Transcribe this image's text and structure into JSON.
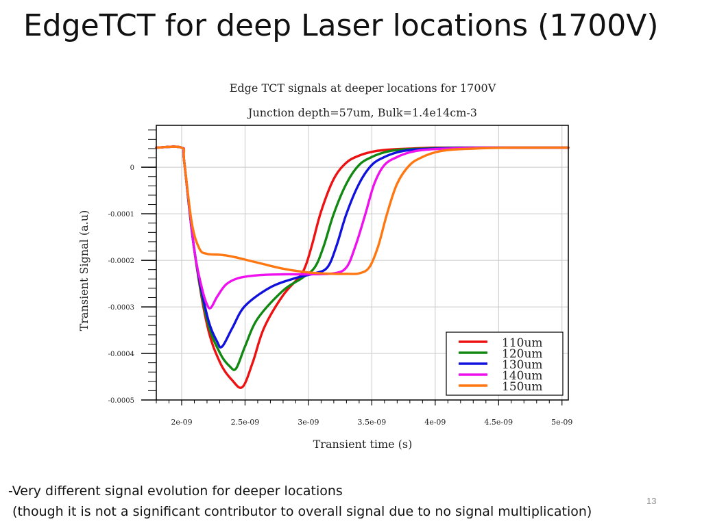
{
  "slide": {
    "title": "EdgeTCT for deep Laser locations (1700V)",
    "caption_line1": "-Very different signal evolution for deeper locations",
    "caption_line2": " (though it is not a significant contributor to overall signal due to no signal multiplication)",
    "slide_number": "13"
  },
  "chart_data": {
    "type": "line",
    "title": "Edge TCT signals at deeper locations for 1700V",
    "subtitle": "Junction depth=57um, Bulk=1.4e14cm-3",
    "xlabel": "Transient time (s)",
    "ylabel": "Transient Signal (a.u)",
    "xlim": [
      1.8e-09,
      5.05e-09
    ],
    "ylim": [
      -0.0005,
      9e-05
    ],
    "x_ticks": [
      2e-09,
      2.5e-09,
      3e-09,
      3.5e-09,
      4e-09,
      4.5e-09,
      5e-09
    ],
    "x_tick_labels": [
      "2e-09",
      "2.5e-09",
      "3e-09",
      "3.5e-09",
      "4e-09",
      "4.5e-09",
      "5e-09"
    ],
    "y_ticks": [
      0,
      -0.0001,
      -0.0002,
      -0.0003,
      -0.0004,
      -0.0005
    ],
    "y_tick_labels": [
      "0",
      "-0.0001",
      "-0.0002",
      "-0.0003",
      "-0.0004",
      "-0.0005"
    ],
    "grid": true,
    "legend_position": "bottom-right",
    "series": [
      {
        "name": "110um",
        "color": "#ee1111",
        "x": [
          1.8e-09,
          2e-09,
          2.02e-09,
          2.1e-09,
          2.2e-09,
          2.3e-09,
          2.4e-09,
          2.48e-09,
          2.56e-09,
          2.65e-09,
          2.8e-09,
          2.93e-09,
          2.98e-09,
          3.03e-09,
          3.1e-09,
          3.2e-09,
          3.3e-09,
          3.4e-09,
          3.5e-09,
          3.6e-09,
          3.8e-09,
          4e-09,
          4.3e-09,
          5.05e-09
        ],
        "y": [
          4.2e-05,
          4.2e-05,
          1.2e-05,
          -0.000178,
          -0.000338,
          -0.000418,
          -0.000458,
          -0.000472,
          -0.00042,
          -0.000345,
          -0.000275,
          -0.000235,
          -0.00021,
          -0.000165,
          -9.5e-05,
          -2.5e-05,
          1e-05,
          2.5e-05,
          3.3e-05,
          3.7e-05,
          4e-05,
          4.2e-05,
          4.2e-05,
          4.2e-05
        ]
      },
      {
        "name": "120um",
        "color": "#118811",
        "x": [
          1.8e-09,
          2e-09,
          2.02e-09,
          2.1e-09,
          2.2e-09,
          2.3e-09,
          2.38e-09,
          2.43e-09,
          2.5e-09,
          2.6e-09,
          2.8e-09,
          2.95e-09,
          3.05e-09,
          3.12e-09,
          3.2e-09,
          3.3e-09,
          3.4e-09,
          3.5e-09,
          3.6e-09,
          3.7e-09,
          3.9e-09,
          4.2e-09,
          5.05e-09
        ],
        "y": [
          4.2e-05,
          4.2e-05,
          1.2e-05,
          -0.000178,
          -0.000328,
          -0.000398,
          -0.000428,
          -0.000432,
          -0.000385,
          -0.000325,
          -0.000265,
          -0.000238,
          -0.000215,
          -0.00017,
          -0.0001,
          -3.5e-05,
          5e-06,
          2.2e-05,
          3.2e-05,
          3.7e-05,
          4e-05,
          4.2e-05,
          4.2e-05
        ]
      },
      {
        "name": "130um",
        "color": "#1111dd",
        "x": [
          1.8e-09,
          2e-09,
          2.02e-09,
          2.1e-09,
          2.2e-09,
          2.28e-09,
          2.32e-09,
          2.4e-09,
          2.5e-09,
          2.7e-09,
          2.9e-09,
          3.05e-09,
          3.15e-09,
          3.22e-09,
          3.3e-09,
          3.4e-09,
          3.5e-09,
          3.6e-09,
          3.7e-09,
          3.8e-09,
          4e-09,
          4.3e-09,
          5.05e-09
        ],
        "y": [
          4.2e-05,
          4.2e-05,
          1.2e-05,
          -0.000178,
          -0.000318,
          -0.000375,
          -0.000385,
          -0.000345,
          -0.000298,
          -0.000258,
          -0.000238,
          -0.000228,
          -0.000215,
          -0.00017,
          -0.0001,
          -3.5e-05,
          5e-06,
          2.2e-05,
          3.2e-05,
          3.7e-05,
          4e-05,
          4.2e-05,
          4.2e-05
        ]
      },
      {
        "name": "140um",
        "color": "#ee11ee",
        "x": [
          1.8e-09,
          2e-09,
          2.02e-09,
          2.1e-09,
          2.16e-09,
          2.2e-09,
          2.23e-09,
          2.28e-09,
          2.35e-09,
          2.45e-09,
          2.6e-09,
          2.8e-09,
          3e-09,
          3.2e-09,
          3.3e-09,
          3.37e-09,
          3.45e-09,
          3.52e-09,
          3.6e-09,
          3.7e-09,
          3.8e-09,
          3.9e-09,
          4.1e-09,
          4.4e-09,
          5.05e-09
        ],
        "y": [
          4.2e-05,
          4.2e-05,
          1.2e-05,
          -0.000178,
          -0.00026,
          -0.000295,
          -0.000302,
          -0.000278,
          -0.000252,
          -0.000238,
          -0.000232,
          -0.00023,
          -0.00023,
          -0.000228,
          -0.000215,
          -0.00017,
          -0.0001,
          -3.5e-05,
          5e-06,
          2.2e-05,
          3.2e-05,
          3.7e-05,
          4e-05,
          4.2e-05,
          4.2e-05
        ]
      },
      {
        "name": "150um",
        "color": "#ff7711",
        "x": [
          1.8e-09,
          2e-09,
          2.02e-09,
          2.08e-09,
          2.14e-09,
          2.2e-09,
          2.3e-09,
          2.4e-09,
          2.6e-09,
          2.8e-09,
          3e-09,
          3.2e-09,
          3.3e-09,
          3.4e-09,
          3.48e-09,
          3.55e-09,
          3.62e-09,
          3.7e-09,
          3.8e-09,
          3.9e-09,
          4e-09,
          4.1e-09,
          4.3e-09,
          4.6e-09,
          5.05e-09
        ],
        "y": [
          4.2e-05,
          4.2e-05,
          1.2e-05,
          -0.00012,
          -0.000175,
          -0.000186,
          -0.000188,
          -0.000192,
          -0.000205,
          -0.000218,
          -0.000226,
          -0.000229,
          -0.000229,
          -0.000228,
          -0.000215,
          -0.00017,
          -0.0001,
          -3.5e-05,
          5e-06,
          2.2e-05,
          3.2e-05,
          3.7e-05,
          4e-05,
          4.2e-05,
          4.2e-05
        ]
      }
    ]
  }
}
